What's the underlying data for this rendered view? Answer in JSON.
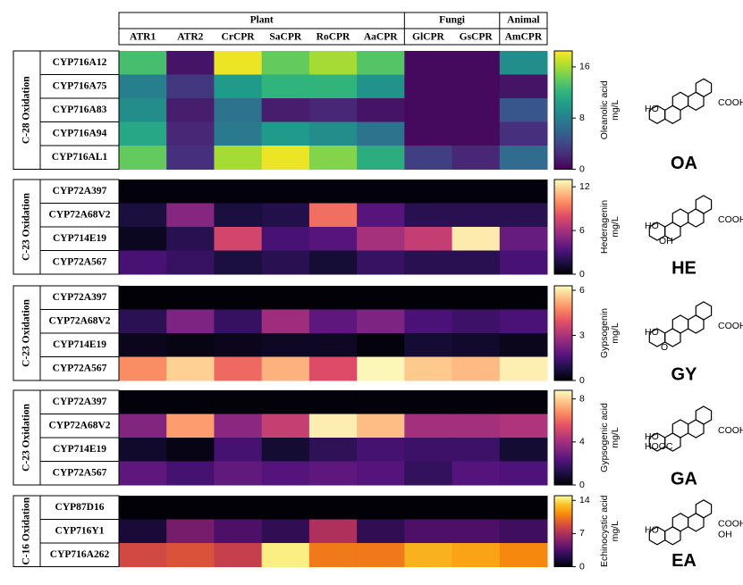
{
  "column_header": {
    "groups": [
      {
        "name": "Plant",
        "columns": [
          "ATR1",
          "ATR2",
          "CrCPR",
          "SaCPR",
          "RoCPR",
          "AaCPR"
        ]
      },
      {
        "name": "Fungi",
        "columns": [
          "GlCPR",
          "GsCPR"
        ]
      },
      {
        "name": "Animal",
        "columns": [
          "AmCPR"
        ]
      }
    ]
  },
  "chart_data": [
    {
      "type": "heatmap",
      "label": "C-28 Oxidation",
      "rows": [
        "CYP716A12",
        "CYP716A75",
        "CYP716A83",
        "CYP716A94",
        "CYP716AL1"
      ],
      "values": [
        [
          13,
          1,
          18,
          14,
          16,
          13.5,
          0.5,
          0.5,
          9
        ],
        [
          8,
          3,
          10,
          12,
          12,
          9.5,
          0.5,
          0.5,
          1
        ],
        [
          9,
          1.5,
          7,
          1.5,
          2,
          1,
          0.5,
          0.5,
          5
        ],
        [
          11,
          2,
          7.5,
          10,
          9,
          7,
          0.5,
          0.5,
          2.5
        ],
        [
          14,
          2.5,
          16,
          18,
          15,
          11.5,
          3.5,
          2,
          6.5
        ]
      ],
      "colormap": "viridis",
      "clim": [
        0,
        18.5
      ],
      "cticks": [
        0,
        8,
        16
      ],
      "colorbar_label": [
        "Oleanolic acid",
        "mg/L"
      ],
      "compound": "OA",
      "structure_labels": [
        "COOH",
        "HO"
      ]
    },
    {
      "type": "heatmap",
      "label": "C-23 Oxidation",
      "rows": [
        "CYP72A397",
        "CYP72A68V2",
        "CYP714E19",
        "CYP72A567"
      ],
      "values": [
        [
          0.2,
          0.2,
          0.2,
          0.2,
          0.2,
          0.2,
          0.2,
          0.2,
          0.2
        ],
        [
          1.5,
          5,
          1.5,
          1.8,
          9,
          3.5,
          2,
          2,
          2
        ],
        [
          0.7,
          2,
          7.5,
          3,
          3.5,
          6,
          7,
          12.5,
          4
        ],
        [
          3,
          2.5,
          1.5,
          2,
          1.3,
          2.5,
          2,
          2,
          3
        ]
      ],
      "colormap": "magma",
      "clim": [
        0,
        13
      ],
      "cticks": [
        0,
        6,
        12
      ],
      "colorbar_label": [
        "Hederagenin",
        "mg/L"
      ],
      "compound": "HE",
      "structure_labels": [
        "COOH",
        "HO",
        "OH"
      ]
    },
    {
      "type": "heatmap",
      "label": "C-23 Oxidation",
      "rows": [
        "CYP72A397",
        "CYP72A68V2",
        "CYP714E19",
        "CYP72A567"
      ],
      "values": [
        [
          0.05,
          0.05,
          0.05,
          0.05,
          0.05,
          0.05,
          0.05,
          0.05,
          0.05
        ],
        [
          1,
          2.3,
          1.2,
          2.8,
          1.8,
          2.3,
          1.5,
          1.3,
          1.5
        ],
        [
          0.3,
          0.2,
          0.3,
          0.4,
          0.4,
          0.1,
          0.6,
          0.5,
          0.3
        ],
        [
          4.8,
          5.7,
          4.3,
          5.3,
          3.8,
          6.2,
          5.6,
          5.4,
          6.1
        ]
      ],
      "colormap": "magma",
      "clim": [
        0,
        6.3
      ],
      "cticks": [
        0,
        3,
        6
      ],
      "colorbar_label": [
        "Gypsogenin",
        "mg/L"
      ],
      "compound": "GY",
      "structure_labels": [
        "COOH",
        "HO",
        "O"
      ]
    },
    {
      "type": "heatmap",
      "label": "C-23 Oxidation",
      "rows": [
        "CYP72A397",
        "CYP72A68V2",
        "CYP714E19",
        "CYP72A567"
      ],
      "values": [
        [
          0.1,
          0.1,
          0.1,
          0.1,
          0.1,
          0.1,
          0.1,
          0.1,
          0.1
        ],
        [
          3.3,
          7,
          3.5,
          4.8,
          8.5,
          7.6,
          4,
          4,
          4.3
        ],
        [
          0.7,
          0.3,
          2,
          0.8,
          1.5,
          2,
          1.8,
          1.8,
          0.8
        ],
        [
          2.5,
          2,
          2.6,
          2.3,
          2.5,
          2.3,
          1.6,
          2.3,
          2.2
        ]
      ],
      "colormap": "magma",
      "clim": [
        0,
        8.8
      ],
      "cticks": [
        0,
        4,
        8
      ],
      "colorbar_label": [
        "Gypsogenic acid",
        "mg/L"
      ],
      "compound": "GA",
      "structure_labels": [
        "COOH",
        "HO",
        "HOOC"
      ]
    },
    {
      "type": "heatmap",
      "label": "C-16 Oxidation",
      "rows": [
        "CYP87D16",
        "CYP716Y1",
        "CYP716A262"
      ],
      "values": [
        [
          0.1,
          0.1,
          0.1,
          0.1,
          0.1,
          0.1,
          0.1,
          0.1,
          0.1
        ],
        [
          1.5,
          5,
          3.5,
          2.5,
          7,
          2.5,
          3.5,
          3.5,
          3
        ],
        [
          8.5,
          9,
          8,
          14.5,
          10.5,
          10.5,
          12.5,
          12,
          11
        ]
      ],
      "colormap": "inferno",
      "clim": [
        0,
        15
      ],
      "cticks": [
        0,
        7,
        14
      ],
      "colorbar_label": [
        "Echinocystic acid",
        "mg/L"
      ],
      "compound": "EA",
      "structure_labels": [
        "COOH",
        "OH",
        "HO"
      ]
    }
  ]
}
